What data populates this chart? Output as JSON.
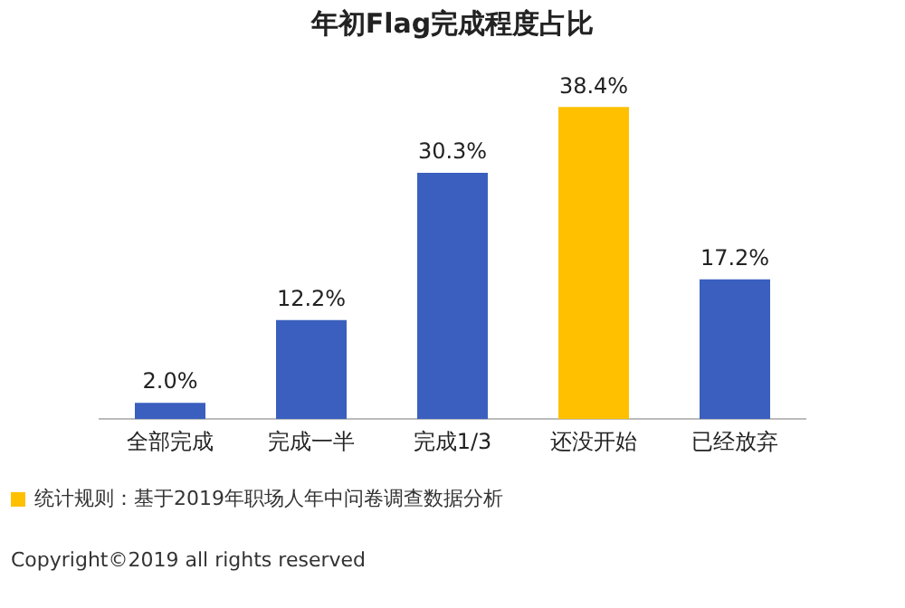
{
  "chart_data": {
    "type": "bar",
    "title": "年初Flag完成程度占比",
    "categories": [
      "全部完成",
      "完成一半",
      "完成1/3",
      "还没开始",
      "已经放弃"
    ],
    "values": [
      2.0,
      12.2,
      30.3,
      38.4,
      17.2
    ],
    "colors": [
      "#3a5fbf",
      "#3a5fbf",
      "#3a5fbf",
      "#ffc000",
      "#3a5fbf"
    ],
    "value_labels": [
      "2.0%",
      "12.2%",
      "30.3%",
      "38.4%",
      "17.2%"
    ],
    "grid": false,
    "legend": false,
    "annotations": [
      "统计规则：基于2019年职场人年中问卷调查数据分析",
      "Copyright©2019 all rights reserved"
    ]
  }
}
